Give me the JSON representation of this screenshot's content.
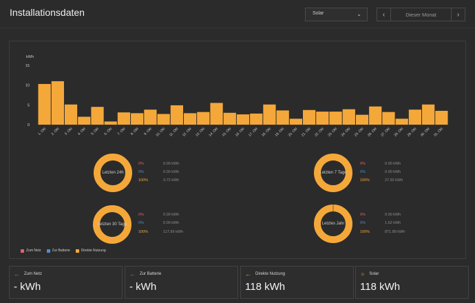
{
  "header": {
    "title": "Installationsdaten",
    "source_select": "Solar",
    "period": "Dieser Monat"
  },
  "colors": {
    "bar": "#f5a83a",
    "to_grid": "#e0616b",
    "to_battery": "#4d8fd1",
    "direct": "#f5a83a"
  },
  "chart_data": {
    "type": "bar",
    "ylabel": "kWh",
    "ylim": [
      0,
      15
    ],
    "yticks": [
      "0",
      "5",
      "10",
      "15"
    ],
    "categories": [
      "1. Okt",
      "2. Okt",
      "3. Okt",
      "4. Okt",
      "5. Okt",
      "6. Okt",
      "7. Okt",
      "8. Okt",
      "9. Okt",
      "10. Okt",
      "11. Okt",
      "12. Okt",
      "13. Okt",
      "14. Okt",
      "15. Okt",
      "16. Okt",
      "17. Okt",
      "18. Okt",
      "19. Okt",
      "20. Okt",
      "21. Okt",
      "22. Okt",
      "23. Okt",
      "24. Okt",
      "25. Okt",
      "26. Okt",
      "27. Okt",
      "28. Okt",
      "29. Okt",
      "30. Okt",
      "31. Okt"
    ],
    "values": [
      10.3,
      11.0,
      5.1,
      2.0,
      4.5,
      0.8,
      3.1,
      2.9,
      3.8,
      2.7,
      4.9,
      2.9,
      3.2,
      5.5,
      3.0,
      2.6,
      2.8,
      5.1,
      3.6,
      1.5,
      3.7,
      3.3,
      3.3,
      3.9,
      2.5,
      4.6,
      3.2,
      1.5,
      3.8,
      5.1,
      3.5
    ]
  },
  "donuts": [
    {
      "label": "Letzten 24h",
      "to_grid_pct": "0%",
      "to_grid_val": "0.00 kWh",
      "to_battery_pct": "0%",
      "to_battery_val": "0.00 kWh",
      "direct_pct": "100%",
      "direct_val": "3.72 kWh"
    },
    {
      "label": "Letzten 7 Tage",
      "to_grid_pct": "0%",
      "to_grid_val": "0.00 kWh",
      "to_battery_pct": "0%",
      "to_battery_val": "0.00 kWh",
      "direct_pct": "100%",
      "direct_val": "27.92 kWh"
    },
    {
      "label": "Letzten 30 Tage",
      "to_grid_pct": "0%",
      "to_grid_val": "0.00 kWh",
      "to_battery_pct": "0%",
      "to_battery_val": "0.00 kWh",
      "direct_pct": "100%",
      "direct_val": "117.99 kWh"
    },
    {
      "label": "Letztes Jahr",
      "to_grid_pct": "0%",
      "to_grid_val": "0.00 kWh",
      "to_battery_pct": "0%",
      "to_battery_val": "1.62 kWh",
      "direct_pct": "100%",
      "direct_val": "871.89 kWh"
    }
  ],
  "legend": {
    "to_grid": "Zum Netz",
    "to_battery": "Zur Batterie",
    "direct": "Direkte Nutzung"
  },
  "cards": [
    {
      "label": "Zum Netz",
      "value": "- kWh"
    },
    {
      "label": "Zur Batterie",
      "value": "- kWh"
    },
    {
      "label": "Direkte Nutzung",
      "value": "118 kWh"
    },
    {
      "label": "Solar",
      "value": "118 kWh"
    }
  ]
}
